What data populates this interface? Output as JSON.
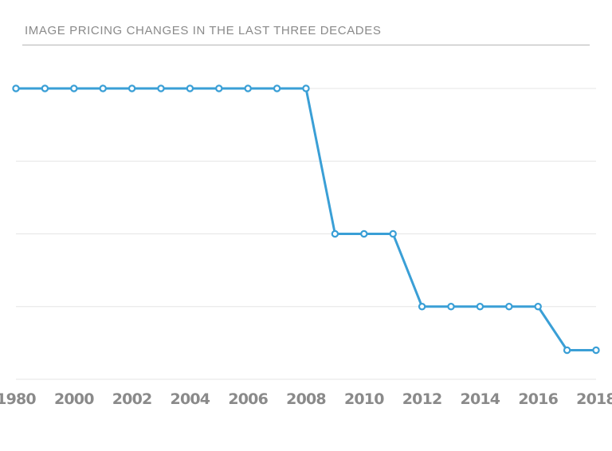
{
  "chart_data": {
    "type": "line",
    "title": "IMAGE PRICING CHANGES IN THE LAST THREE DECADES",
    "xlabel": "",
    "ylabel": "",
    "x": [
      1980,
      1999,
      2000,
      2001,
      2002,
      2003,
      2004,
      2005,
      2006,
      2007,
      2008,
      2009,
      2010,
      2011,
      2012,
      2013,
      2014,
      2015,
      2016,
      2017,
      2018
    ],
    "x_tick_labels": [
      "1980",
      "2000",
      "2002",
      "2004",
      "2006",
      "2008",
      "2010",
      "2012",
      "2014",
      "2016",
      "2018"
    ],
    "x_tick_values": [
      1980,
      2000,
      2002,
      2004,
      2006,
      2008,
      2010,
      2012,
      2014,
      2016,
      2018
    ],
    "series": [
      {
        "values": [
          4,
          4,
          4,
          4,
          4,
          4,
          4,
          4,
          4,
          4,
          4,
          2,
          2,
          2,
          1,
          1,
          1,
          1,
          1,
          0.4,
          0.4
        ]
      }
    ],
    "ylim": [
      0,
      4
    ],
    "y_gridlines": [
      0,
      1,
      2,
      3,
      4
    ],
    "y_axis_labels_shown": false,
    "grid": true,
    "line_color": "#3a9fd6",
    "grid_color": "#e6e6e6",
    "text_color": "#8a8a8a"
  }
}
